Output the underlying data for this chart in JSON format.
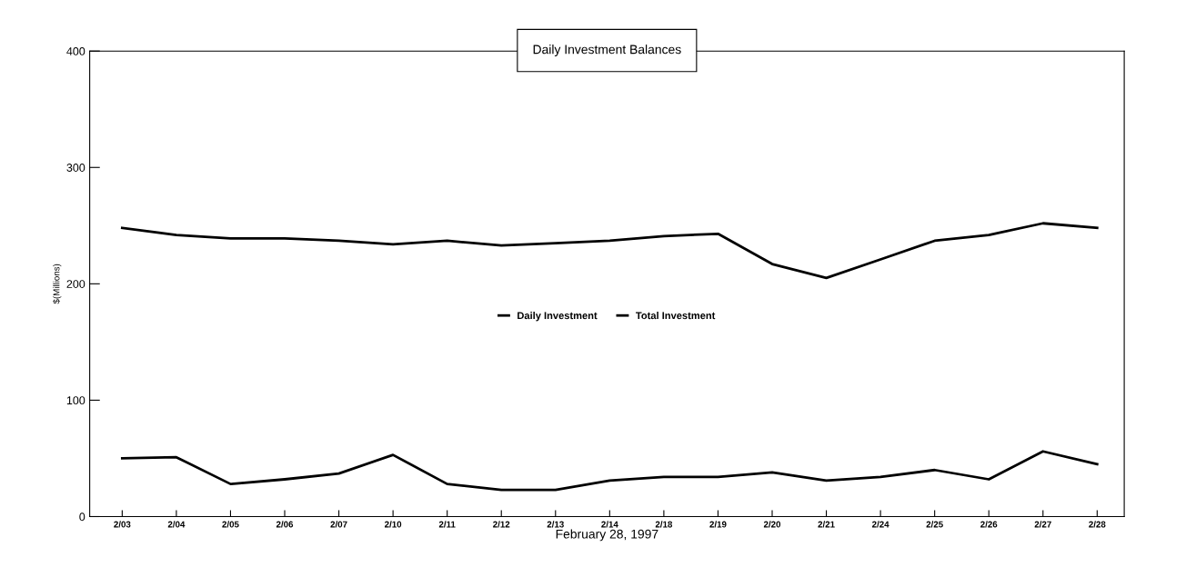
{
  "chart_data": {
    "type": "line",
    "title": "Daily Investment Balances",
    "xlabel": "February 28, 1997",
    "ylabel": "$(Millions)",
    "categories": [
      "2/03",
      "2/04",
      "2/05",
      "2/06",
      "2/07",
      "2/10",
      "2/11",
      "2/12",
      "2/13",
      "2/14",
      "2/18",
      "2/19",
      "2/20",
      "2/21",
      "2/24",
      "2/25",
      "2/26",
      "2/27",
      "2/28"
    ],
    "series": [
      {
        "name": "Daily Investment",
        "color": "#000000",
        "values": [
          50,
          51,
          28,
          32,
          37,
          53,
          28,
          23,
          23,
          31,
          34,
          34,
          38,
          31,
          34,
          40,
          32,
          56,
          45
        ]
      },
      {
        "name": "Total Investment",
        "color": "#000000",
        "values": [
          248,
          242,
          239,
          239,
          237,
          234,
          237,
          233,
          235,
          237,
          241,
          243,
          217,
          205,
          221,
          237,
          242,
          252,
          248
        ]
      }
    ],
    "ylim": [
      0,
      400
    ],
    "yticks": [
      0,
      100,
      200,
      300,
      400
    ],
    "grid": false,
    "legend": "center",
    "marker": "none",
    "line_style": "solid"
  }
}
